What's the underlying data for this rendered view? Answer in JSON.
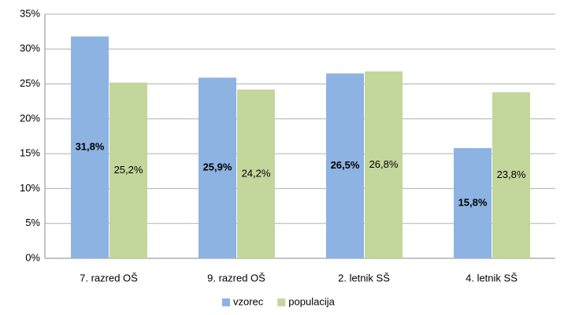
{
  "chart_data": {
    "type": "bar",
    "categories": [
      "7. razred OŠ",
      "9. razred OŠ",
      "2. letnik SŠ",
      "4. letnik SŠ"
    ],
    "series": [
      {
        "name": "vzorec",
        "color": "#8db3e2",
        "values": [
          31.8,
          25.9,
          26.5,
          15.8
        ],
        "value_labels": [
          "31,8%",
          "25,9%",
          "26,5%",
          "15,8%"
        ]
      },
      {
        "name": "populacija",
        "color": "#c3d69b",
        "values": [
          25.2,
          24.2,
          26.8,
          23.8
        ],
        "value_labels": [
          "25,2%",
          "24,2%",
          "26,8%",
          "23,8%"
        ]
      }
    ],
    "ylim": [
      0,
      35
    ],
    "yticks": [
      {
        "value": 0,
        "label": "0%"
      },
      {
        "value": 5,
        "label": "5%"
      },
      {
        "value": 10,
        "label": "10%"
      },
      {
        "value": 15,
        "label": "15%"
      },
      {
        "value": 20,
        "label": "20%"
      },
      {
        "value": 25,
        "label": "25%"
      },
      {
        "value": 30,
        "label": "30%"
      },
      {
        "value": 35,
        "label": "35%"
      }
    ],
    "grid": true,
    "legend": "bottom"
  }
}
